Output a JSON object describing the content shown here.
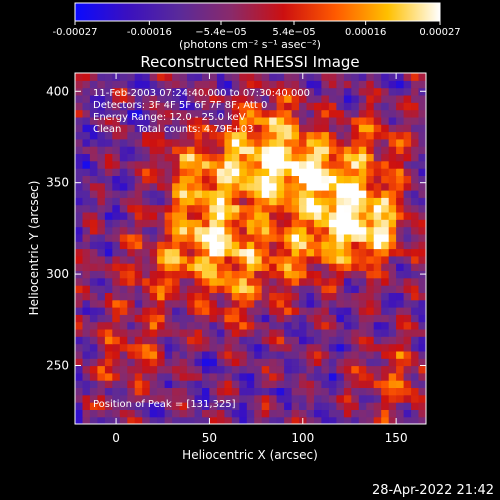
{
  "chart_data": {
    "type": "heatmap",
    "title": "Reconstructed RHESSI Image",
    "xlabel": "Heliocentric X (arcsec)",
    "ylabel": "Heliocentric Y (arcsec)",
    "xlim": [
      -22,
      166
    ],
    "ylim": [
      218,
      410
    ],
    "xticks": [
      0,
      50,
      100,
      150
    ],
    "yticks": [
      250,
      300,
      350,
      400
    ],
    "colorbar": {
      "range": [
        -0.00027,
        0.00027
      ],
      "tick_values": [
        -0.00027,
        -0.00016,
        -5.4e-05,
        5.4e-05,
        0.00016,
        0.00027
      ],
      "tick_labels": [
        "-0.00027",
        "-0.00016",
        "−5.4e−05",
        "5.4e−05",
        "0.00016",
        "0.00027"
      ],
      "units_label": "(photons cm⁻² s⁻¹ asec⁻²)",
      "colormap": [
        "#0a0aff",
        "#3a10c0",
        "#5a2a9a",
        "#8a2a6a",
        "#cc1010",
        "#ff5a00",
        "#ffc000",
        "#ffffff"
      ]
    },
    "annotations": [
      "11-Feb-2003 07:24:40.000 to 07:30:40.000",
      "Detectors: 3F 4F 5F 6F 7F 8F, Att 0",
      "Energy Range: 12.0 - 25.0 keV",
      "Clean     Total counts: 4.79E+03"
    ],
    "peak_label": "Position of Peak = [131,325]",
    "peak_position": [
      131,
      325
    ],
    "bright_sources": [
      {
        "x": 131,
        "y": 325,
        "amp": 1.0
      },
      {
        "x": 50,
        "y": 320,
        "amp": 0.8
      },
      {
        "x": 80,
        "y": 355,
        "amp": 0.75
      },
      {
        "x": 110,
        "y": 350,
        "amp": 0.7
      },
      {
        "x": 42,
        "y": 355,
        "amp": 0.6
      },
      {
        "x": 95,
        "y": 310,
        "amp": 0.55
      },
      {
        "x": 60,
        "y": 290,
        "amp": 0.45
      },
      {
        "x": 20,
        "y": 300,
        "amp": 0.4
      },
      {
        "x": 150,
        "y": 240,
        "amp": 0.45
      },
      {
        "x": 5,
        "y": 255,
        "amp": 0.4
      },
      {
        "x": 140,
        "y": 370,
        "amp": 0.35
      },
      {
        "x": 80,
        "y": 380,
        "amp": 0.5
      }
    ]
  },
  "footer": {
    "timestamp": "28-Apr-2022 21:42"
  }
}
